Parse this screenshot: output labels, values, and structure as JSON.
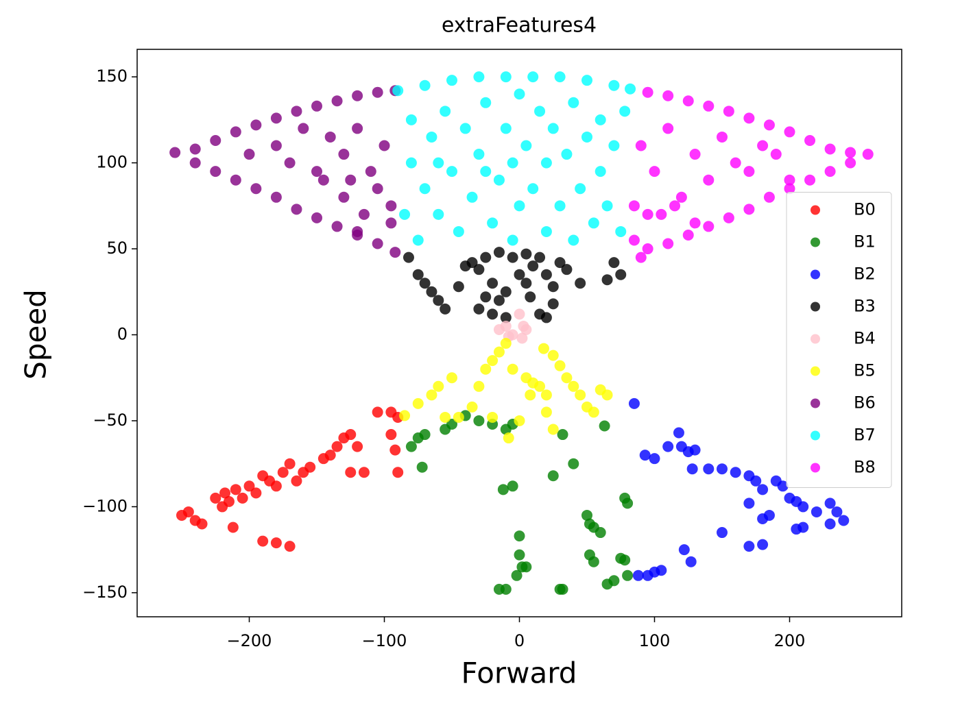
{
  "chart_data": {
    "type": "scatter",
    "title": "extraFeatures4",
    "x_label": "Forward",
    "y_label": "Speed",
    "xlim": [
      -283,
      283
    ],
    "ylim": [
      -164,
      166
    ],
    "xticks": [
      {
        "value": -200,
        "label": "−200"
      },
      {
        "value": -100,
        "label": "−100"
      },
      0,
      100,
      200
    ],
    "yticks": [
      {
        "value": -150,
        "label": "−150"
      },
      {
        "value": -100,
        "label": "−100"
      },
      {
        "value": -50,
        "label": "−50"
      },
      0,
      50,
      100,
      150
    ],
    "grid": false,
    "legend": "center right",
    "series": [
      {
        "name": "B0",
        "color": "#ff0000",
        "x": [
          -250,
          -245,
          -240,
          -235,
          -225,
          -220,
          -218,
          -215,
          -212,
          -210,
          -205,
          -200,
          -195,
          -190,
          -185,
          -180,
          -175,
          -170,
          -165,
          -160,
          -155,
          -145,
          -140,
          -135,
          -130,
          -125,
          -120,
          -115,
          -125,
          -190,
          -180,
          -170,
          -105,
          -95,
          -95,
          -92,
          -90,
          -90
        ],
        "values": [
          -105,
          -103,
          -108,
          -110,
          -95,
          -100,
          -92,
          -97,
          -112,
          -90,
          -95,
          -88,
          -92,
          -82,
          -85,
          -88,
          -80,
          -75,
          -85,
          -80,
          -77,
          -72,
          -70,
          -65,
          -60,
          -58,
          -65,
          -80,
          -80,
          -120,
          -121,
          -123,
          -45,
          -45,
          -58,
          -67,
          -80,
          -48
        ]
      },
      {
        "name": "B1",
        "color": "#008000",
        "x": [
          -80,
          -75,
          -72,
          -70,
          -55,
          -50,
          -30,
          -20,
          -10,
          -5,
          -12,
          -5,
          -15,
          -10,
          0,
          0,
          2,
          -2,
          5,
          30,
          32,
          25,
          32,
          40,
          50,
          52,
          55,
          60,
          52,
          55,
          65,
          70,
          75,
          78,
          78,
          80,
          80,
          63,
          -40
        ],
        "values": [
          -65,
          -60,
          -77,
          -58,
          -55,
          -52,
          -50,
          -52,
          -55,
          -52,
          -90,
          -88,
          -148,
          -148,
          -117,
          -128,
          -135,
          -140,
          -135,
          -148,
          -148,
          -82,
          -58,
          -75,
          -105,
          -110,
          -112,
          -115,
          -128,
          -132,
          -145,
          -143,
          -130,
          -131,
          -95,
          -98,
          -140,
          -53,
          -47
        ]
      },
      {
        "name": "B2",
        "color": "#0000ff",
        "x": [
          85,
          88,
          95,
          100,
          105,
          93,
          100,
          110,
          118,
          120,
          125,
          130,
          128,
          140,
          150,
          160,
          170,
          175,
          180,
          190,
          195,
          200,
          205,
          210,
          220,
          230,
          235,
          240,
          230,
          185,
          180,
          170,
          150,
          170,
          180,
          205,
          210,
          122,
          127
        ],
        "values": [
          -40,
          -140,
          -140,
          -138,
          -137,
          -70,
          -72,
          -65,
          -57,
          -65,
          -68,
          -67,
          -78,
          -78,
          -78,
          -80,
          -82,
          -85,
          -90,
          -85,
          -88,
          -95,
          -97,
          -100,
          -103,
          -98,
          -103,
          -108,
          -110,
          -105,
          -107,
          -98,
          -115,
          -123,
          -122,
          -113,
          -112,
          -125,
          -132
        ]
      },
      {
        "name": "B3",
        "color": "#000000",
        "x": [
          -82,
          -75,
          -70,
          -65,
          -60,
          -55,
          -45,
          -40,
          -35,
          -30,
          -25,
          -20,
          -15,
          -10,
          -5,
          0,
          5,
          8,
          10,
          15,
          20,
          25,
          15,
          20,
          -20,
          -10,
          -30,
          30,
          35,
          45,
          65,
          70,
          75,
          -15,
          5,
          25,
          -25
        ],
        "values": [
          45,
          35,
          30,
          25,
          20,
          15,
          28,
          40,
          42,
          38,
          45,
          30,
          20,
          25,
          45,
          35,
          30,
          22,
          40,
          45,
          35,
          28,
          12,
          10,
          12,
          10,
          15,
          42,
          38,
          30,
          32,
          42,
          35,
          48,
          47,
          18,
          22
        ]
      },
      {
        "name": "B4",
        "color": "#ffc0cb",
        "x": [
          -15,
          -10,
          -5,
          0,
          2,
          5,
          -8,
          3
        ],
        "values": [
          3,
          5,
          0,
          12,
          -2,
          3,
          -1,
          5
        ]
      },
      {
        "name": "B5",
        "color": "#ffff00",
        "x": [
          -85,
          -75,
          -65,
          -60,
          -50,
          -45,
          -35,
          -30,
          -25,
          -20,
          -15,
          -10,
          -8,
          -20,
          0,
          5,
          8,
          10,
          15,
          20,
          18,
          25,
          30,
          35,
          40,
          45,
          50,
          55,
          60,
          65,
          20,
          25,
          -5,
          -55
        ],
        "values": [
          -47,
          -40,
          -35,
          -30,
          -25,
          -48,
          -42,
          -30,
          -20,
          -15,
          -10,
          -5,
          -60,
          -48,
          -50,
          -25,
          -35,
          -28,
          -30,
          -35,
          -8,
          -12,
          -18,
          -25,
          -30,
          -35,
          -42,
          -45,
          -32,
          -35,
          -45,
          -55,
          -20,
          -48
        ]
      },
      {
        "name": "B6",
        "color": "#800080",
        "x": [
          -255,
          -240,
          -225,
          -210,
          -195,
          -180,
          -165,
          -150,
          -135,
          -120,
          -105,
          -92,
          -240,
          -225,
          -210,
          -195,
          -180,
          -165,
          -150,
          -135,
          -120,
          -105,
          -92,
          -200,
          -180,
          -170,
          -150,
          -140,
          -130,
          -120,
          -110,
          -100,
          -105,
          -95,
          -115,
          -130,
          -160,
          -145,
          -125,
          -120,
          -95
        ],
        "values": [
          106,
          108,
          113,
          118,
          122,
          126,
          130,
          133,
          136,
          139,
          141,
          142,
          100,
          95,
          90,
          85,
          80,
          73,
          68,
          63,
          58,
          53,
          48,
          105,
          110,
          100,
          95,
          115,
          105,
          120,
          95,
          110,
          85,
          75,
          70,
          80,
          120,
          90,
          90,
          60,
          65
        ]
      },
      {
        "name": "B7",
        "color": "#00ffff",
        "x": [
          -90,
          -70,
          -50,
          -30,
          -10,
          10,
          30,
          50,
          70,
          82,
          -85,
          -80,
          -80,
          -75,
          -70,
          -65,
          -60,
          -55,
          -50,
          -45,
          -40,
          -35,
          -30,
          -25,
          -20,
          -15,
          -10,
          -5,
          -5,
          0,
          0,
          5,
          10,
          15,
          20,
          20,
          25,
          30,
          35,
          40,
          40,
          45,
          50,
          55,
          60,
          60,
          65,
          70,
          75,
          78,
          -60,
          -25
        ],
        "values": [
          142,
          145,
          148,
          150,
          150,
          150,
          150,
          148,
          145,
          143,
          70,
          100,
          125,
          55,
          85,
          115,
          70,
          130,
          95,
          60,
          120,
          80,
          105,
          135,
          65,
          90,
          120,
          55,
          100,
          140,
          75,
          110,
          85,
          130,
          60,
          100,
          120,
          75,
          105,
          135,
          55,
          85,
          115,
          65,
          125,
          95,
          75,
          110,
          60,
          130,
          100,
          95
        ]
      },
      {
        "name": "B8",
        "color": "#ff00ff",
        "x": [
          95,
          110,
          125,
          140,
          155,
          170,
          185,
          200,
          215,
          230,
          245,
          258,
          245,
          230,
          215,
          200,
          185,
          170,
          155,
          140,
          125,
          110,
          95,
          85,
          90,
          100,
          110,
          120,
          130,
          140,
          150,
          160,
          170,
          180,
          190,
          200,
          105,
          95,
          115,
          130,
          90,
          85
        ],
        "values": [
          141,
          139,
          136,
          133,
          130,
          126,
          122,
          118,
          113,
          108,
          106,
          105,
          100,
          95,
          90,
          85,
          80,
          73,
          68,
          63,
          58,
          53,
          50,
          55,
          110,
          95,
          120,
          80,
          105,
          90,
          115,
          100,
          95,
          110,
          105,
          90,
          70,
          70,
          75,
          65,
          45,
          75
        ]
      }
    ]
  }
}
